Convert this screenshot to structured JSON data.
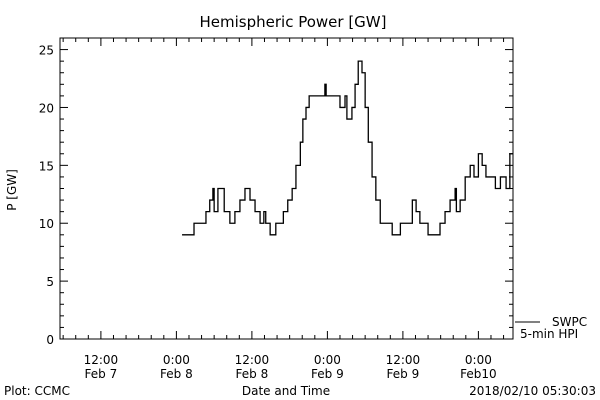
{
  "chart_data": {
    "type": "line",
    "title": "Hemispheric Power [GW]",
    "xlabel": "Date and Time",
    "ylabel": "P [GW]",
    "x_units": "hours since 2018-02-07 00:00",
    "xlim": [
      5.5,
      77.5
    ],
    "ylim": [
      0,
      26
    ],
    "yticks": [
      0,
      5,
      10,
      15,
      20,
      25
    ],
    "xticks": [
      {
        "h": 12,
        "time": "12:00",
        "date": "Feb 7"
      },
      {
        "h": 24,
        "time": "0:00",
        "date": "Feb 8"
      },
      {
        "h": 36,
        "time": "12:00",
        "date": "Feb 8"
      },
      {
        "h": 48,
        "time": "0:00",
        "date": "Feb 9"
      },
      {
        "h": 60,
        "time": "12:00",
        "date": "Feb 9"
      },
      {
        "h": 72,
        "time": "0:00",
        "date": "Feb10"
      }
    ],
    "legend": {
      "placement": "bottom-right",
      "source": "SWPC",
      "series_label": "5-min HPI"
    },
    "series": [
      {
        "name": "5-min HPI",
        "step_points": [
          [
            24.9,
            9
          ],
          [
            26.8,
            10
          ],
          [
            28.7,
            11
          ],
          [
            29.3,
            12
          ],
          [
            29.8,
            13
          ],
          [
            30.0,
            11
          ],
          [
            30.6,
            13
          ],
          [
            31.6,
            11
          ],
          [
            32.5,
            10
          ],
          [
            33.3,
            11
          ],
          [
            34.1,
            12
          ],
          [
            34.9,
            13
          ],
          [
            35.7,
            12
          ],
          [
            36.5,
            11
          ],
          [
            37.3,
            10
          ],
          [
            37.9,
            11
          ],
          [
            38.2,
            10
          ],
          [
            38.9,
            9
          ],
          [
            39.8,
            10
          ],
          [
            41.0,
            11
          ],
          [
            41.7,
            12
          ],
          [
            42.4,
            13
          ],
          [
            43.0,
            15
          ],
          [
            43.7,
            17
          ],
          [
            44.1,
            19
          ],
          [
            44.6,
            20
          ],
          [
            45.1,
            21
          ],
          [
            47.6,
            22
          ],
          [
            47.8,
            21
          ],
          [
            50.0,
            20
          ],
          [
            50.8,
            21
          ],
          [
            51.1,
            19
          ],
          [
            51.9,
            20
          ],
          [
            52.4,
            22
          ],
          [
            52.9,
            24
          ],
          [
            53.5,
            23
          ],
          [
            54.0,
            20
          ],
          [
            54.5,
            17
          ],
          [
            55.1,
            14
          ],
          [
            55.7,
            12
          ],
          [
            56.4,
            10
          ],
          [
            58.3,
            9
          ],
          [
            59.6,
            10
          ],
          [
            61.5,
            12
          ],
          [
            62.1,
            11
          ],
          [
            62.7,
            10
          ],
          [
            64.0,
            9
          ],
          [
            65.9,
            10
          ],
          [
            66.7,
            11
          ],
          [
            67.5,
            12
          ],
          [
            68.3,
            13
          ],
          [
            68.5,
            11
          ],
          [
            69.1,
            12
          ],
          [
            69.9,
            14
          ],
          [
            70.7,
            15
          ],
          [
            71.3,
            14
          ],
          [
            72.0,
            16
          ],
          [
            72.6,
            15
          ],
          [
            73.2,
            14
          ],
          [
            74.7,
            13
          ],
          [
            75.5,
            14
          ],
          [
            76.4,
            13
          ],
          [
            77.0,
            16
          ],
          [
            77.5,
            16
          ]
        ]
      }
    ]
  },
  "footer": {
    "left": "Plot: CCMC",
    "right": "2018/02/10 05:30:03"
  }
}
